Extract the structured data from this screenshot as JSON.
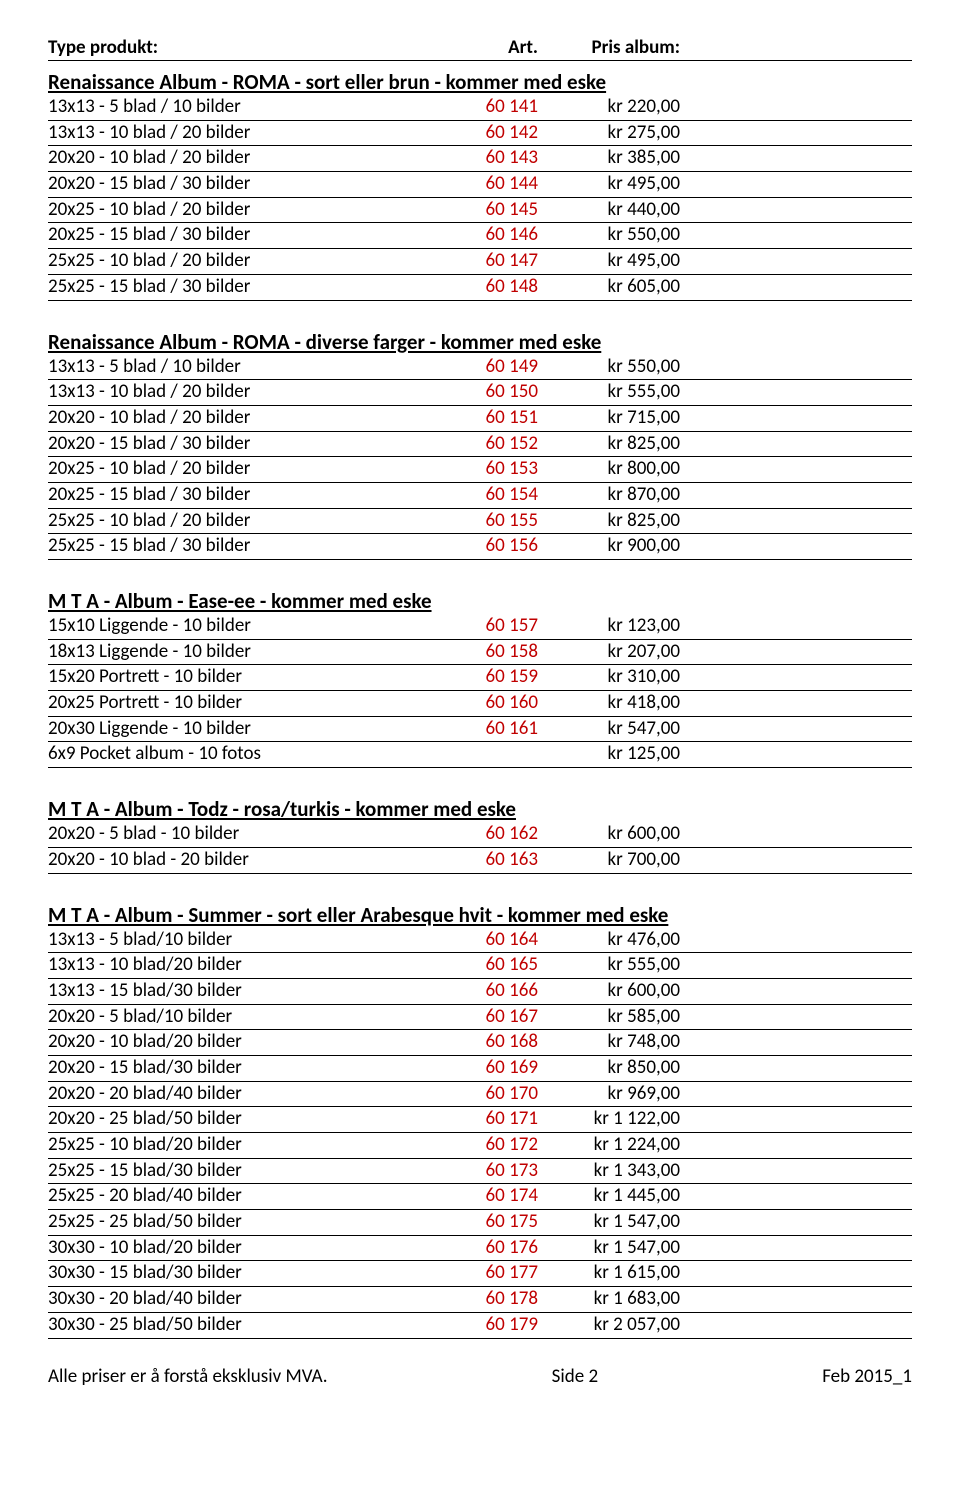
{
  "header": {
    "col_product": "Type produkt:",
    "col_art": "Art.",
    "col_price": "Pris album:"
  },
  "sections": [
    {
      "title": "Renaissance Album - ROMA - sort eller brun - kommer med eske",
      "rows": [
        {
          "product": "13x13 - 5 blad / 10 bilder",
          "art": "60 141",
          "price": "kr 220,00"
        },
        {
          "product": "13x13 - 10 blad / 20 bilder",
          "art": "60 142",
          "price": "kr 275,00"
        },
        {
          "product": "20x20 - 10 blad / 20 bilder",
          "art": "60 143",
          "price": "kr 385,00"
        },
        {
          "product": "20x20 - 15 blad / 30 bilder",
          "art": "60 144",
          "price": "kr 495,00"
        },
        {
          "product": "20x25 - 10 blad / 20 bilder",
          "art": "60 145",
          "price": "kr 440,00"
        },
        {
          "product": "20x25 - 15 blad / 30 bilder",
          "art": "60 146",
          "price": "kr 550,00"
        },
        {
          "product": "25x25 - 10 blad / 20 bilder",
          "art": "60 147",
          "price": "kr 495,00"
        },
        {
          "product": "25x25 - 15 blad / 30 bilder",
          "art": "60 148",
          "price": "kr 605,00"
        }
      ]
    },
    {
      "title": "Renaissance Album - ROMA -  diverse farger - kommer med eske",
      "rows": [
        {
          "product": "13x13 - 5 blad / 10 bilder",
          "art": "60 149",
          "price": "kr 550,00"
        },
        {
          "product": "13x13 - 10 blad / 20 bilder",
          "art": "60 150",
          "price": "kr 555,00"
        },
        {
          "product": "20x20 - 10 blad / 20 bilder",
          "art": "60 151",
          "price": "kr 715,00"
        },
        {
          "product": "20x20 - 15 blad / 30 bilder",
          "art": "60 152",
          "price": "kr 825,00"
        },
        {
          "product": "20x25 - 10 blad / 20 bilder",
          "art": "60 153",
          "price": "kr 800,00"
        },
        {
          "product": "20x25 - 15 blad / 30 bilder",
          "art": "60 154",
          "price": "kr 870,00"
        },
        {
          "product": "25x25 - 10 blad / 20 bilder",
          "art": "60 155",
          "price": "kr 825,00"
        },
        {
          "product": "25x25 - 15 blad / 30 bilder",
          "art": "60 156",
          "price": "kr 900,00"
        }
      ]
    },
    {
      "title": "M T A - Album - Ease-ee - kommer med eske",
      "rows": [
        {
          "product": "15x10 Liggende - 10 bilder",
          "art": "60 157",
          "price": "kr 123,00"
        },
        {
          "product": "18x13 Liggende - 10 bilder",
          "art": "60 158",
          "price": "kr 207,00"
        },
        {
          "product": "15x20 Portrett - 10 bilder",
          "art": "60 159",
          "price": "kr 310,00"
        },
        {
          "product": "20x25 Portrett - 10 bilder",
          "art": "60 160",
          "price": "kr 418,00"
        },
        {
          "product": "20x30 Liggende - 10 bilder",
          "art": "60 161",
          "price": "kr 547,00"
        },
        {
          "product": "6x9 Pocket album - 10 fotos",
          "art": "",
          "price": "kr 125,00"
        }
      ]
    },
    {
      "title": "M T A - Album - Todz - rosa/turkis - kommer med eske",
      "rows": [
        {
          "product": "20x20 - 5 blad - 10 bilder",
          "art": "60 162",
          "price": "kr 600,00"
        },
        {
          "product": "20x20 - 10 blad - 20 bilder",
          "art": "60 163",
          "price": "kr 700,00"
        }
      ]
    },
    {
      "title": "M T A - Album - Summer - sort eller Arabesque hvit - kommer med eske",
      "rows": [
        {
          "product": "13x13 - 5 blad/10 bilder",
          "art": "60 164",
          "price": "kr 476,00"
        },
        {
          "product": "13x13 - 10 blad/20 bilder",
          "art": "60 165",
          "price": "kr 555,00"
        },
        {
          "product": "13x13 - 15 blad/30 bilder",
          "art": "60 166",
          "price": "kr 600,00"
        },
        {
          "product": "20x20 - 5 blad/10 bilder",
          "art": "60 167",
          "price": "kr 585,00"
        },
        {
          "product": "20x20 - 10 blad/20 bilder",
          "art": "60 168",
          "price": "kr 748,00"
        },
        {
          "product": "20x20 - 15 blad/30 bilder",
          "art": "60 169",
          "price": "kr 850,00"
        },
        {
          "product": "20x20 - 20 blad/40 bilder",
          "art": "60 170",
          "price": "kr 969,00"
        },
        {
          "product": "20x20 - 25 blad/50 bilder",
          "art": "60 171",
          "price": "kr 1 122,00"
        },
        {
          "product": "25x25 - 10 blad/20 bilder",
          "art": "60 172",
          "price": "kr 1 224,00"
        },
        {
          "product": "25x25 - 15 blad/30 bilder",
          "art": "60 173",
          "price": "kr 1 343,00"
        },
        {
          "product": "25x25 - 20 blad/40 bilder",
          "art": "60 174",
          "price": "kr 1 445,00"
        },
        {
          "product": "25x25 - 25 blad/50 bilder",
          "art": "60 175",
          "price": "kr 1 547,00"
        },
        {
          "product": "30x30 - 10 blad/20 bilder",
          "art": "60 176",
          "price": "kr 1 547,00"
        },
        {
          "product": "30x30 - 15 blad/30 bilder",
          "art": "60 177",
          "price": "kr 1 615,00"
        },
        {
          "product": "30x30 - 20 blad/40 bilder",
          "art": "60 178",
          "price": "kr 1 683,00"
        },
        {
          "product": "30x30 - 25 blad/50 bilder",
          "art": "60 179",
          "price": "kr 2 057,00"
        }
      ]
    }
  ],
  "footer": {
    "left": "Alle priser er å forstå eksklusiv MVA.",
    "center": "Side 2",
    "right": "Feb 2015_1"
  }
}
